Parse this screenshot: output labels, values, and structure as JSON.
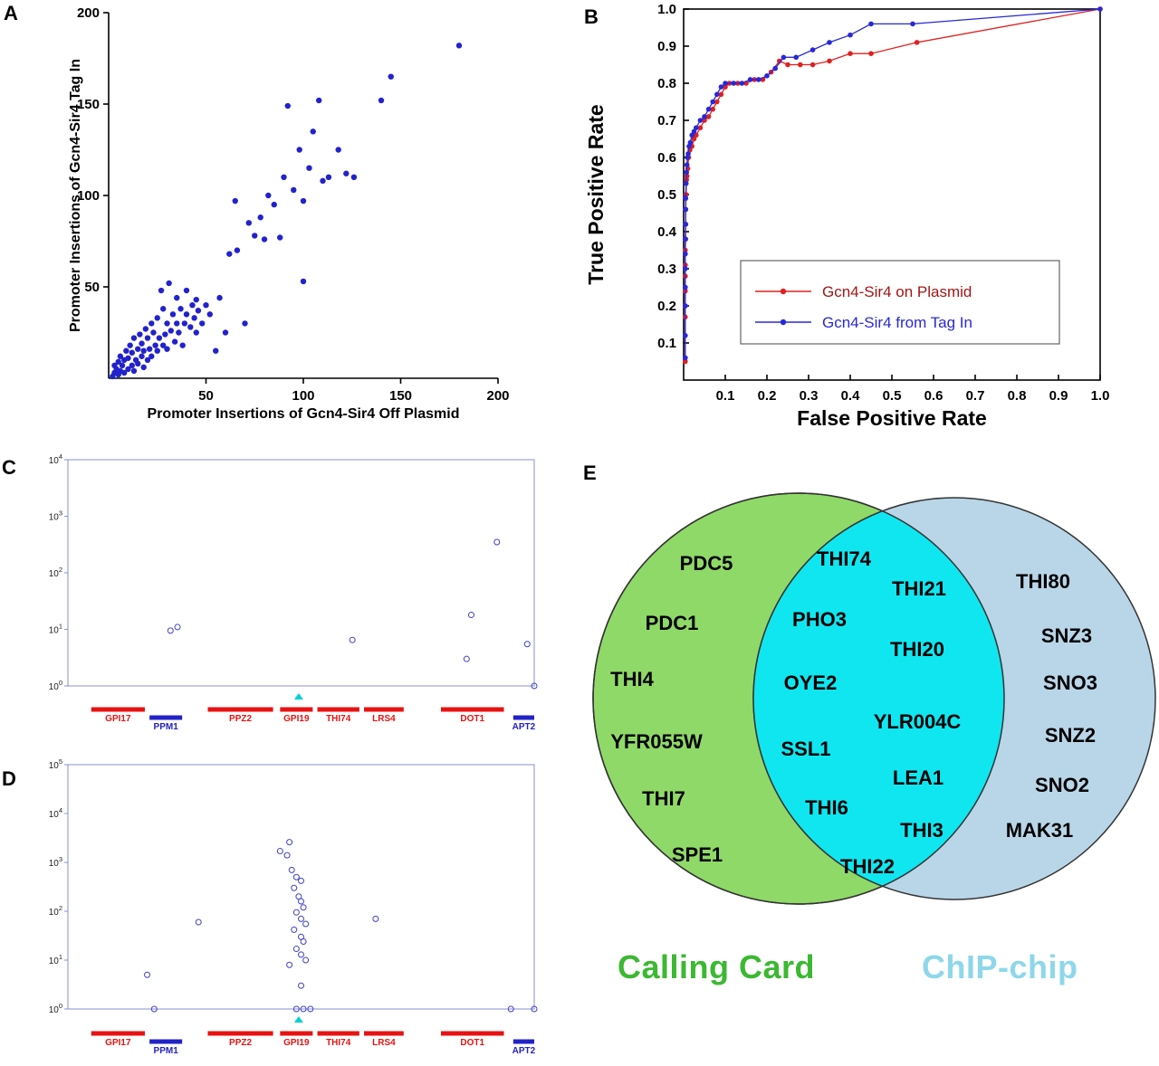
{
  "panels": [
    "A",
    "B",
    "C",
    "D",
    "E"
  ],
  "chart_data": [
    {
      "panel": "A",
      "type": "scatter",
      "xlabel": "Promoter Insertions of Gcn4-Sir4 Off Plasmid",
      "ylabel": "Promoter Insertions of Gcn4-Sir4 Tag In",
      "xlim": [
        0,
        200
      ],
      "ylim": [
        0,
        200
      ],
      "xticks": [
        50,
        100,
        150,
        200
      ],
      "yticks": [
        50,
        100,
        150,
        200
      ],
      "marker": "filled-circle",
      "marker_color": "#2222cc",
      "points": [
        [
          2,
          1
        ],
        [
          3,
          3
        ],
        [
          3,
          7
        ],
        [
          4,
          5
        ],
        [
          5,
          2
        ],
        [
          5,
          9
        ],
        [
          6,
          4
        ],
        [
          6,
          12
        ],
        [
          7,
          7
        ],
        [
          8,
          3
        ],
        [
          8,
          10
        ],
        [
          9,
          15
        ],
        [
          10,
          5
        ],
        [
          10,
          11
        ],
        [
          11,
          18
        ],
        [
          12,
          7
        ],
        [
          12,
          14
        ],
        [
          13,
          4
        ],
        [
          13,
          22
        ],
        [
          14,
          10
        ],
        [
          15,
          8
        ],
        [
          15,
          16
        ],
        [
          16,
          24
        ],
        [
          17,
          12
        ],
        [
          17,
          19
        ],
        [
          18,
          6
        ],
        [
          18,
          15
        ],
        [
          19,
          27
        ],
        [
          20,
          10
        ],
        [
          20,
          22
        ],
        [
          21,
          16
        ],
        [
          22,
          12
        ],
        [
          22,
          30
        ],
        [
          23,
          25
        ],
        [
          24,
          18
        ],
        [
          25,
          15
        ],
        [
          25,
          33
        ],
        [
          26,
          22
        ],
        [
          27,
          48
        ],
        [
          28,
          18
        ],
        [
          28,
          38
        ],
        [
          29,
          24
        ],
        [
          30,
          16
        ],
        [
          30,
          30
        ],
        [
          31,
          52
        ],
        [
          32,
          26
        ],
        [
          33,
          35
        ],
        [
          34,
          20
        ],
        [
          35,
          30
        ],
        [
          35,
          44
        ],
        [
          36,
          25
        ],
        [
          37,
          38
        ],
        [
          38,
          18
        ],
        [
          39,
          30
        ],
        [
          40,
          35
        ],
        [
          40,
          48
        ],
        [
          42,
          28
        ],
        [
          43,
          40
        ],
        [
          44,
          33
        ],
        [
          45,
          25
        ],
        [
          45,
          43
        ],
        [
          46,
          37
        ],
        [
          48,
          30
        ],
        [
          50,
          40
        ],
        [
          52,
          35
        ],
        [
          55,
          15
        ],
        [
          57,
          44
        ],
        [
          60,
          25
        ],
        [
          62,
          68
        ],
        [
          65,
          97
        ],
        [
          66,
          70
        ],
        [
          70,
          30
        ],
        [
          72,
          85
        ],
        [
          75,
          78
        ],
        [
          78,
          88
        ],
        [
          80,
          76
        ],
        [
          82,
          100
        ],
        [
          85,
          95
        ],
        [
          88,
          77
        ],
        [
          90,
          110
        ],
        [
          92,
          149
        ],
        [
          95,
          103
        ],
        [
          98,
          125
        ],
        [
          100,
          53
        ],
        [
          100,
          97
        ],
        [
          103,
          115
        ],
        [
          105,
          135
        ],
        [
          108,
          152
        ],
        [
          110,
          108
        ],
        [
          113,
          110
        ],
        [
          118,
          125
        ],
        [
          122,
          112
        ],
        [
          126,
          110
        ],
        [
          140,
          152
        ],
        [
          145,
          165
        ],
        [
          180,
          182
        ]
      ]
    },
    {
      "panel": "B",
      "type": "line",
      "xlabel": "False Positive Rate",
      "ylabel": "True Positive Rate",
      "xlim": [
        0,
        1
      ],
      "ylim": [
        0,
        1
      ],
      "xticks": [
        0.1,
        0.2,
        0.3,
        0.4,
        0.5,
        0.6,
        0.7,
        0.8,
        0.9,
        1.0
      ],
      "yticks": [
        0.1,
        0.2,
        0.3,
        0.4,
        0.5,
        0.6,
        0.7,
        0.8,
        0.9,
        1.0
      ],
      "legend_position": "inside-lower-right",
      "series": [
        {
          "name": "Gcn4-Sir4 on Plasmid",
          "color": "#e02020",
          "label_color": "#a51515",
          "points": [
            [
              0.004,
              0.05
            ],
            [
              0.004,
              0.17
            ],
            [
              0.004,
              0.2
            ],
            [
              0.004,
              0.24
            ],
            [
              0.004,
              0.28
            ],
            [
              0.004,
              0.31
            ],
            [
              0.004,
              0.35
            ],
            [
              0.005,
              0.38
            ],
            [
              0.005,
              0.42
            ],
            [
              0.005,
              0.46
            ],
            [
              0.006,
              0.5
            ],
            [
              0.007,
              0.54
            ],
            [
              0.008,
              0.55
            ],
            [
              0.01,
              0.57
            ],
            [
              0.012,
              0.6
            ],
            [
              0.015,
              0.62
            ],
            [
              0.02,
              0.63
            ],
            [
              0.025,
              0.65
            ],
            [
              0.03,
              0.66
            ],
            [
              0.04,
              0.68
            ],
            [
              0.05,
              0.7
            ],
            [
              0.06,
              0.71
            ],
            [
              0.07,
              0.73
            ],
            [
              0.08,
              0.75
            ],
            [
              0.09,
              0.77
            ],
            [
              0.1,
              0.79
            ],
            [
              0.11,
              0.8
            ],
            [
              0.13,
              0.8
            ],
            [
              0.15,
              0.8
            ],
            [
              0.17,
              0.81
            ],
            [
              0.19,
              0.81
            ],
            [
              0.21,
              0.83
            ],
            [
              0.23,
              0.86
            ],
            [
              0.25,
              0.85
            ],
            [
              0.28,
              0.85
            ],
            [
              0.31,
              0.85
            ],
            [
              0.35,
              0.86
            ],
            [
              0.4,
              0.88
            ],
            [
              0.45,
              0.88
            ],
            [
              0.56,
              0.91
            ],
            [
              1.0,
              1.0
            ]
          ]
        },
        {
          "name": "Gcn4-Sir4 from Tag In",
          "color": "#2828d8",
          "label_color": "#2828d8",
          "points": [
            [
              0.004,
              0.06
            ],
            [
              0.004,
              0.12
            ],
            [
              0.004,
              0.2
            ],
            [
              0.004,
              0.25
            ],
            [
              0.004,
              0.3
            ],
            [
              0.004,
              0.34
            ],
            [
              0.004,
              0.38
            ],
            [
              0.005,
              0.42
            ],
            [
              0.005,
              0.46
            ],
            [
              0.005,
              0.49
            ],
            [
              0.006,
              0.53
            ],
            [
              0.007,
              0.56
            ],
            [
              0.008,
              0.58
            ],
            [
              0.009,
              0.6
            ],
            [
              0.011,
              0.61
            ],
            [
              0.013,
              0.63
            ],
            [
              0.016,
              0.64
            ],
            [
              0.02,
              0.66
            ],
            [
              0.025,
              0.67
            ],
            [
              0.03,
              0.68
            ],
            [
              0.04,
              0.7
            ],
            [
              0.05,
              0.71
            ],
            [
              0.06,
              0.73
            ],
            [
              0.07,
              0.75
            ],
            [
              0.08,
              0.77
            ],
            [
              0.09,
              0.79
            ],
            [
              0.1,
              0.8
            ],
            [
              0.12,
              0.8
            ],
            [
              0.14,
              0.8
            ],
            [
              0.16,
              0.81
            ],
            [
              0.18,
              0.81
            ],
            [
              0.2,
              0.82
            ],
            [
              0.22,
              0.84
            ],
            [
              0.24,
              0.87
            ],
            [
              0.27,
              0.87
            ],
            [
              0.31,
              0.89
            ],
            [
              0.35,
              0.91
            ],
            [
              0.4,
              0.93
            ],
            [
              0.45,
              0.96
            ],
            [
              0.55,
              0.96
            ],
            [
              1.0,
              1.0
            ]
          ]
        }
      ]
    },
    {
      "panel": "C",
      "type": "scatter",
      "yscale": "log",
      "ylim_exp": [
        0,
        4
      ],
      "marker": "open-circle",
      "marker_color": "#4040c8",
      "points": [
        [
          0.22,
          9.5
        ],
        [
          0.235,
          11
        ],
        [
          0.61,
          6.5
        ],
        [
          0.855,
          3
        ],
        [
          0.865,
          18
        ],
        [
          0.92,
          350
        ],
        [
          0.985,
          5.5
        ],
        [
          1.0,
          1
        ]
      ]
    },
    {
      "panel": "D",
      "type": "scatter",
      "yscale": "log",
      "ylim_exp": [
        0,
        5
      ],
      "marker": "open-circle",
      "marker_color": "#4040c8",
      "points": [
        [
          0.17,
          5
        ],
        [
          0.185,
          1
        ],
        [
          0.28,
          60
        ],
        [
          0.455,
          1700
        ],
        [
          0.475,
          2600
        ],
        [
          0.47,
          1400
        ],
        [
          0.48,
          700
        ],
        [
          0.49,
          500
        ],
        [
          0.5,
          420
        ],
        [
          0.485,
          300
        ],
        [
          0.495,
          200
        ],
        [
          0.5,
          160
        ],
        [
          0.505,
          120
        ],
        [
          0.49,
          95
        ],
        [
          0.5,
          70
        ],
        [
          0.51,
          55
        ],
        [
          0.485,
          42
        ],
        [
          0.5,
          30
        ],
        [
          0.505,
          24
        ],
        [
          0.49,
          17
        ],
        [
          0.5,
          13
        ],
        [
          0.51,
          10
        ],
        [
          0.475,
          8
        ],
        [
          0.5,
          3
        ],
        [
          0.49,
          1
        ],
        [
          0.505,
          1
        ],
        [
          0.52,
          1
        ],
        [
          0.66,
          70
        ],
        [
          0.95,
          1
        ],
        [
          1.0,
          1
        ]
      ]
    },
    {
      "panel": "E",
      "type": "venn",
      "left_label": "Calling Card",
      "right_label": "ChIP-chip",
      "left_color": "#8fd968",
      "right_color": "#b9d6e8",
      "overlap_color": "#10e6f0",
      "left_label_color": "#3cb832",
      "right_label_color": "#8ed7ea",
      "left_only": [
        "PDC5",
        "PDC1",
        "THI4",
        "YFR055W",
        "THI7",
        "SPE1"
      ],
      "intersection": [
        "THI74",
        "THI21",
        "PHO3",
        "THI20",
        "OYE2",
        "YLR004C",
        "SSL1",
        "LEA1",
        "THI6",
        "THI3",
        "THI22"
      ],
      "right_only": [
        "THI80",
        "SNZ3",
        "SNO3",
        "SNZ2",
        "SNO2",
        "MAK31"
      ]
    }
  ],
  "gene_track": {
    "genes": [
      {
        "name": "GPI17",
        "color": "#e81212",
        "row": "top",
        "start": 0.05,
        "end": 0.165
      },
      {
        "name": "PPM1",
        "color": "#2222c8",
        "row": "bottom",
        "start": 0.175,
        "end": 0.245
      },
      {
        "name": "PPZ2",
        "color": "#e81212",
        "row": "top",
        "start": 0.3,
        "end": 0.44
      },
      {
        "name": "GPI19",
        "color": "#e81212",
        "row": "top",
        "start": 0.455,
        "end": 0.525
      },
      {
        "name": "THI74",
        "color": "#e81212",
        "row": "top",
        "start": 0.535,
        "end": 0.625
      },
      {
        "name": "LRS4",
        "color": "#e81212",
        "row": "top",
        "start": 0.635,
        "end": 0.72
      },
      {
        "name": "DOT1",
        "color": "#e81212",
        "row": "top",
        "start": 0.8,
        "end": 0.935
      },
      {
        "name": "APT2",
        "color": "#2222c8",
        "row": "bottom",
        "start": 0.955,
        "end": 1.0
      }
    ],
    "marker": {
      "shape": "triangle-up",
      "color": "#00d2d2",
      "x": 0.495
    }
  }
}
